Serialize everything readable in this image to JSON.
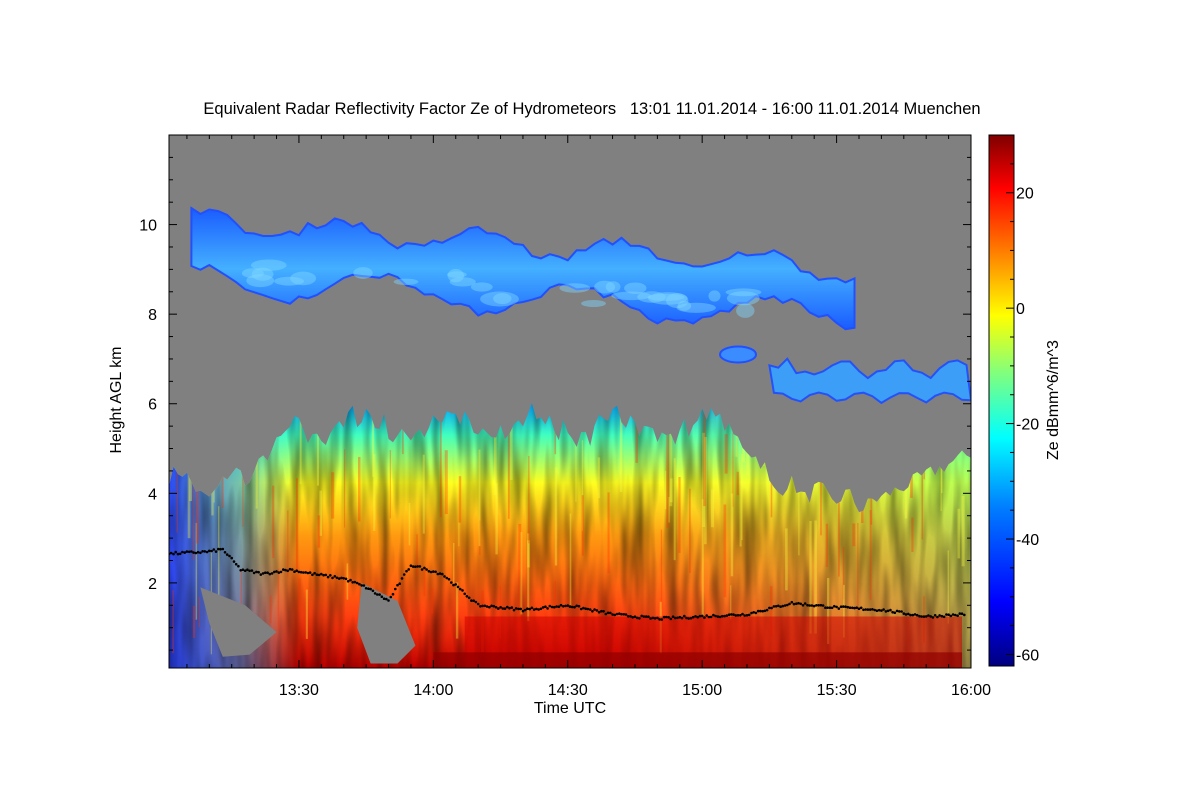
{
  "chart_data": {
    "type": "heatmap",
    "title": "Equivalent Radar Reflectivity Factor Ze of Hydrometeors   13:01 11.01.2014 - 16:00 11.01.2014 Muenchen",
    "xlabel": "Time UTC",
    "ylabel": "Height AGL km",
    "colorbar_label": "Ze dBmm^6/m^3",
    "x_ticks": [
      "13:30",
      "14:00",
      "14:30",
      "15:00",
      "15:30",
      "16:00"
    ],
    "x_tick_minutes": [
      30,
      60,
      90,
      120,
      150,
      180
    ],
    "xlim_minutes": [
      1,
      180
    ],
    "y_ticks": [
      "2",
      "4",
      "6",
      "8",
      "10"
    ],
    "ylim": [
      0.1,
      12
    ],
    "colorbar_ticks": [
      "20",
      "0",
      "-20",
      "-40",
      "-60"
    ],
    "colorbar_range": [
      -62,
      30
    ],
    "no_signal_color": "#808080",
    "colormap": [
      "#00007f",
      "#0000ff",
      "#007fff",
      "#00ffff",
      "#7fff7f",
      "#ffff00",
      "#ff7f00",
      "#ff0000",
      "#7f0000"
    ],
    "features": {
      "upper_cloud_layer": {
        "time_minutes": [
          6,
          154
        ],
        "base_km": 7.8,
        "top_km": 10.1,
        "ze_dbz": [
          -45,
          -28
        ]
      },
      "mid_cloud_patch": {
        "time_minutes": [
          135,
          180
        ],
        "base_km": 5.8,
        "top_km": 7.1,
        "ze_dbz": [
          -40,
          -25
        ]
      },
      "precipitation_region": {
        "time_minutes": [
          1,
          180
        ],
        "base_km": 0.2,
        "top_km": 5.9,
        "ze_dbz": [
          -45,
          15
        ]
      },
      "cloud_base_points": [
        {
          "t": 1,
          "h": 2.65
        },
        {
          "t": 10,
          "h": 2.7
        },
        {
          "t": 13,
          "h": 2.75
        },
        {
          "t": 17,
          "h": 2.3
        },
        {
          "t": 22,
          "h": 2.2
        },
        {
          "t": 28,
          "h": 2.3
        },
        {
          "t": 33,
          "h": 2.2
        },
        {
          "t": 40,
          "h": 2.1
        },
        {
          "t": 45,
          "h": 1.9
        },
        {
          "t": 50,
          "h": 1.6
        },
        {
          "t": 55,
          "h": 2.4
        },
        {
          "t": 62,
          "h": 2.2
        },
        {
          "t": 70,
          "h": 1.5
        },
        {
          "t": 80,
          "h": 1.4
        },
        {
          "t": 90,
          "h": 1.5
        },
        {
          "t": 100,
          "h": 1.3
        },
        {
          "t": 110,
          "h": 1.2
        },
        {
          "t": 130,
          "h": 1.3
        },
        {
          "t": 140,
          "h": 1.55
        },
        {
          "t": 150,
          "h": 1.45
        },
        {
          "t": 160,
          "h": 1.4
        },
        {
          "t": 170,
          "h": 1.25
        },
        {
          "t": 179,
          "h": 1.3
        }
      ]
    }
  }
}
